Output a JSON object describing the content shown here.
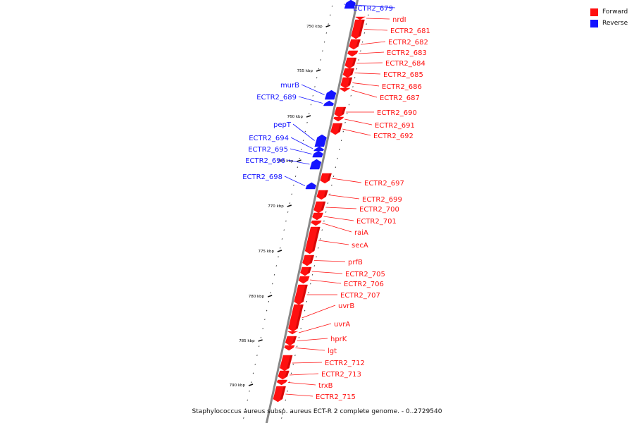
{
  "colors": {
    "forward": "#ff1010",
    "reverse": "#1414ff",
    "backbone": "#888888",
    "tick": "#111111"
  },
  "legend": {
    "forward": "Forward",
    "reverse": "Reverse"
  },
  "caption": "Staphylococcus aureus subsp. aureus ECT-R 2 complete genome. - 0..2729540",
  "axis": {
    "unit": "kbp",
    "major_ticks": [
      750,
      755,
      760,
      765,
      770,
      775,
      780,
      785,
      790
    ]
  },
  "features": [
    {
      "label": "ECTR2_679",
      "strand": "reverse"
    },
    {
      "label": "nrdI",
      "strand": "forward"
    },
    {
      "label": "ECTR2_681",
      "strand": "forward"
    },
    {
      "label": "ECTR2_682",
      "strand": "forward"
    },
    {
      "label": "ECTR2_683",
      "strand": "forward"
    },
    {
      "label": "ECTR2_684",
      "strand": "forward"
    },
    {
      "label": "ECTR2_685",
      "strand": "forward"
    },
    {
      "label": "ECTR2_686",
      "strand": "forward"
    },
    {
      "label": "ECTR2_687",
      "strand": "forward"
    },
    {
      "label": "murB",
      "strand": "reverse"
    },
    {
      "label": "ECTR2_689",
      "strand": "reverse"
    },
    {
      "label": "ECTR2_690",
      "strand": "forward"
    },
    {
      "label": "ECTR2_691",
      "strand": "forward"
    },
    {
      "label": "ECTR2_692",
      "strand": "forward"
    },
    {
      "label": "pepT",
      "strand": "reverse"
    },
    {
      "label": "ECTR2_694",
      "strand": "reverse"
    },
    {
      "label": "ECTR2_695",
      "strand": "reverse"
    },
    {
      "label": "ECTR2_696",
      "strand": "reverse"
    },
    {
      "label": "ECTR2_697",
      "strand": "forward"
    },
    {
      "label": "ECTR2_698",
      "strand": "reverse"
    },
    {
      "label": "ECTR2_699",
      "strand": "forward"
    },
    {
      "label": "ECTR2_700",
      "strand": "forward"
    },
    {
      "label": "ECTR2_701",
      "strand": "forward"
    },
    {
      "label": "raiA",
      "strand": "forward"
    },
    {
      "label": "secA",
      "strand": "forward"
    },
    {
      "label": "prfB",
      "strand": "forward"
    },
    {
      "label": "ECTR2_705",
      "strand": "forward"
    },
    {
      "label": "ECTR2_706",
      "strand": "forward"
    },
    {
      "label": "ECTR2_707",
      "strand": "forward"
    },
    {
      "label": "uvrB",
      "strand": "forward"
    },
    {
      "label": "uvrA",
      "strand": "forward"
    },
    {
      "label": "hprK",
      "strand": "forward"
    },
    {
      "label": "lgt",
      "strand": "forward"
    },
    {
      "label": "ECTR2_712",
      "strand": "forward"
    },
    {
      "label": "ECTR2_713",
      "strand": "forward"
    },
    {
      "label": "trxB",
      "strand": "forward"
    },
    {
      "label": "ECTR2_715",
      "strand": "forward"
    }
  ]
}
